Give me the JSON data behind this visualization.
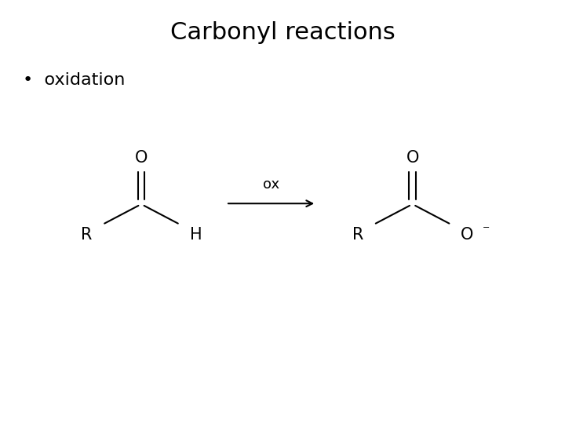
{
  "title": "Carbonyl reactions",
  "bullet": "oxidation",
  "background_color": "#ffffff",
  "text_color": "#000000",
  "title_fontsize": 22,
  "bullet_fontsize": 16,
  "chem_fontsize": 15,
  "arrow_label": "ox",
  "arrow_label_fontsize": 13,
  "fig_width": 7.2,
  "fig_height": 5.4,
  "dpi": 100
}
